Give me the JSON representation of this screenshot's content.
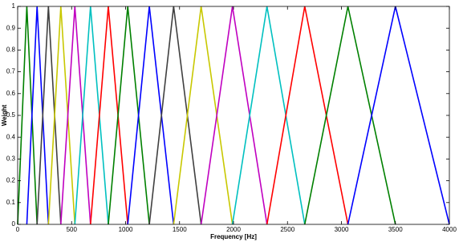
{
  "chart_data": {
    "type": "line",
    "xlabel": "Frequency [Hz]",
    "ylabel": "Weight",
    "xlim": [
      0,
      4000
    ],
    "xticks": [
      0,
      500,
      1000,
      1500,
      2000,
      2500,
      3000,
      3500,
      4000
    ],
    "ylim": [
      0,
      1
    ],
    "yticks": [
      0,
      0.1,
      0.2,
      0.3,
      0.4,
      0.5,
      0.6,
      0.7,
      0.8,
      0.9,
      1
    ],
    "series": [
      {
        "color": "#008000",
        "x": [
          0,
          85,
          180
        ],
        "values": [
          0,
          1,
          0
        ]
      },
      {
        "color": "#0000ff",
        "x": [
          85,
          180,
          285
        ],
        "values": [
          0,
          1,
          0
        ]
      },
      {
        "color": "#404040",
        "x": [
          180,
          285,
          400
        ],
        "values": [
          0,
          1,
          0
        ]
      },
      {
        "color": "#c8c800",
        "x": [
          285,
          400,
          530
        ],
        "values": [
          0,
          1,
          0
        ]
      },
      {
        "color": "#c000c0",
        "x": [
          400,
          530,
          675
        ],
        "values": [
          0,
          1,
          0
        ]
      },
      {
        "color": "#00c0c0",
        "x": [
          530,
          675,
          840
        ],
        "values": [
          0,
          1,
          0
        ]
      },
      {
        "color": "#ff0000",
        "x": [
          675,
          840,
          1020
        ],
        "values": [
          0,
          1,
          0
        ]
      },
      {
        "color": "#008000",
        "x": [
          840,
          1020,
          1220
        ],
        "values": [
          0,
          1,
          0
        ]
      },
      {
        "color": "#0000ff",
        "x": [
          1020,
          1220,
          1445
        ],
        "values": [
          0,
          1,
          0
        ]
      },
      {
        "color": "#404040",
        "x": [
          1220,
          1445,
          1700
        ],
        "values": [
          0,
          1,
          0
        ]
      },
      {
        "color": "#c8c800",
        "x": [
          1445,
          1700,
          1990
        ],
        "values": [
          0,
          1,
          0
        ]
      },
      {
        "color": "#c000c0",
        "x": [
          1700,
          1990,
          2310
        ],
        "values": [
          0,
          1,
          0
        ]
      },
      {
        "color": "#00c0c0",
        "x": [
          1990,
          2310,
          2660
        ],
        "values": [
          0,
          1,
          0
        ]
      },
      {
        "color": "#ff0000",
        "x": [
          2310,
          2660,
          3060
        ],
        "values": [
          0,
          1,
          0
        ]
      },
      {
        "color": "#008000",
        "x": [
          2660,
          3060,
          3500
        ],
        "values": [
          0,
          1,
          0
        ]
      },
      {
        "color": "#0000ff",
        "x": [
          3060,
          3500,
          4000
        ],
        "values": [
          0,
          1,
          0
        ]
      }
    ]
  }
}
